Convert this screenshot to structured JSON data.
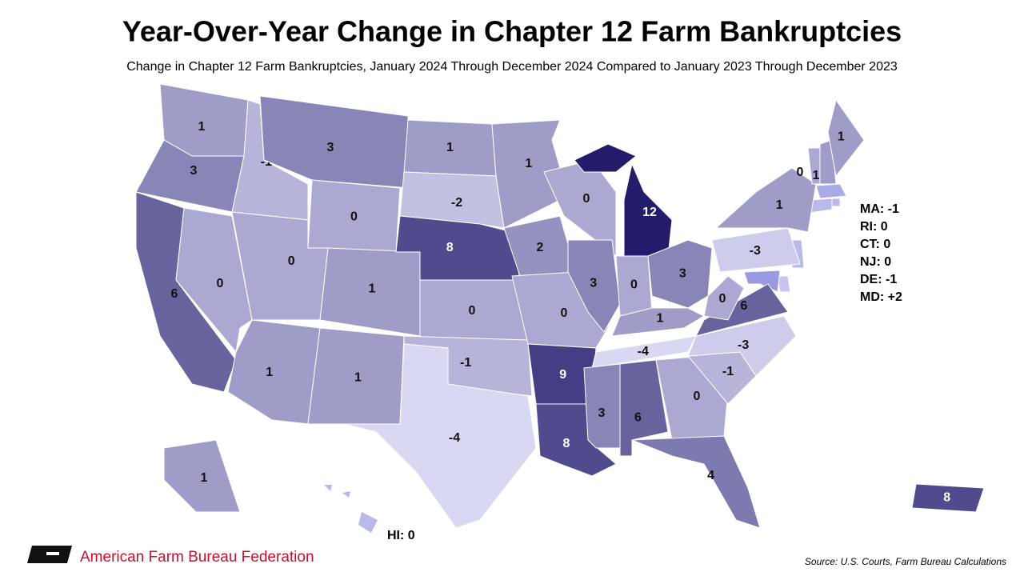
{
  "chart_data": {
    "type": "choropleth",
    "title": "Year-Over-Year Change in Chapter 12 Farm Bankruptcies",
    "subtitle": "Change in Chapter 12 Farm Bankruptcies, January 2024 Through December 2024 Compared to January 2023 Through December 2023",
    "values": [
      1,
      3,
      6,
      0,
      -1,
      3,
      0,
      0,
      1,
      1,
      1,
      1,
      -2,
      8,
      0,
      -1,
      -4,
      1,
      2,
      0,
      9,
      8,
      0,
      3,
      12,
      0,
      3,
      1,
      -4,
      3,
      6,
      0,
      4,
      -1,
      -3,
      6,
      0,
      -3,
      1,
      0,
      1,
      1,
      1,
      8
    ],
    "callouts": [
      "MA: -1",
      "RI: 0",
      "CT: 0",
      "NJ: 0",
      "DE: -1",
      "MD: +2",
      "HI: 0"
    ],
    "colorlim": [
      -4,
      12
    ],
    "colors": [
      "#d8d8f3",
      "#221c6a"
    ],
    "source": "Source: U.S. Courts, Farm Bureau Calculations",
    "brand": "American Farm Bureau Federation"
  }
}
